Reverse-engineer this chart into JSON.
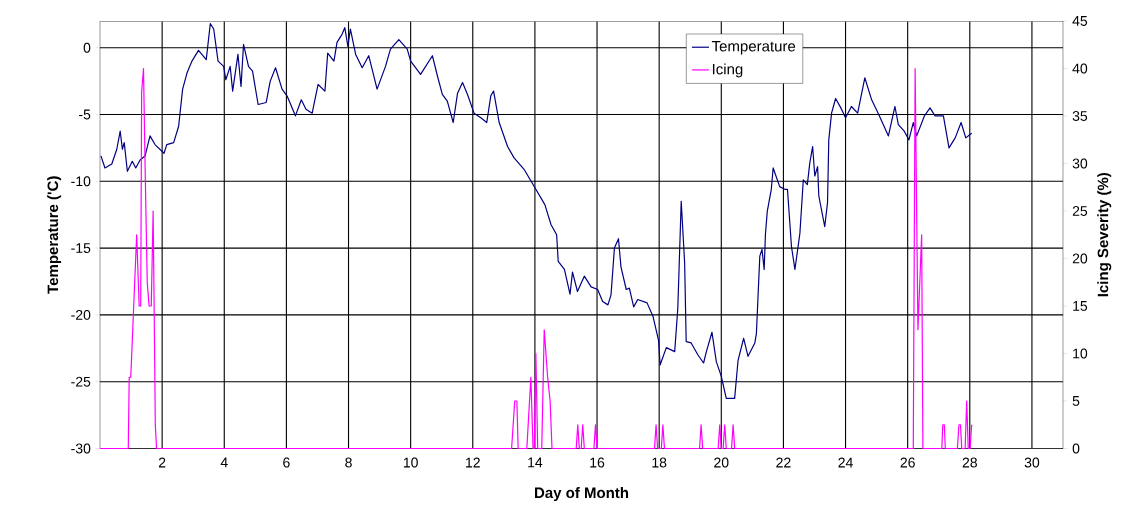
{
  "chart_data": {
    "type": "line",
    "xlabel": "Day of Month",
    "ylabel": "Temperature ('C)",
    "y2label": "Icing Severity (%)",
    "xlim": [
      0,
      31
    ],
    "xticks": [
      2,
      4,
      6,
      8,
      10,
      12,
      14,
      16,
      18,
      20,
      22,
      24,
      26,
      28,
      30
    ],
    "ylim": [
      -30,
      2
    ],
    "yticks": [
      -30,
      -25,
      -20,
      -15,
      -10,
      -5,
      0
    ],
    "y2lim": [
      0,
      45
    ],
    "y2ticks": [
      0,
      5,
      10,
      15,
      20,
      25,
      30,
      35,
      40,
      45
    ],
    "grid": true,
    "legend": "top right",
    "marker": "none",
    "line_style": "solid",
    "series": [
      {
        "name": "Temperature",
        "color": "#000080",
        "x": [
          0.03,
          0.16,
          0.38,
          0.54,
          0.65,
          0.72,
          0.78,
          0.88,
          1.04,
          1.15,
          1.29,
          1.45,
          1.61,
          1.77,
          2.06,
          2.15,
          2.37,
          2.53,
          2.66,
          2.8,
          2.96,
          3.17,
          3.42,
          3.55,
          3.66,
          3.8,
          3.98,
          4.05,
          4.19,
          4.27,
          4.44,
          4.54,
          4.62,
          4.78,
          4.91,
          5.09,
          5.35,
          5.48,
          5.65,
          5.86,
          6.02,
          6.29,
          6.48,
          6.63,
          6.83,
          7.02,
          7.24,
          7.33,
          7.53,
          7.63,
          7.79,
          7.88,
          7.98,
          8.06,
          8.23,
          8.44,
          8.65,
          8.92,
          9.19,
          9.35,
          9.62,
          9.89,
          10.0,
          10.32,
          10.7,
          10.86,
          11.02,
          11.18,
          11.37,
          11.51,
          11.67,
          11.83,
          12.04,
          12.26,
          12.45,
          12.58,
          12.67,
          12.85,
          13.12,
          13.33,
          13.65,
          14.03,
          14.32,
          14.52,
          14.7,
          14.75,
          14.95,
          15.13,
          15.21,
          15.37,
          15.59,
          15.81,
          16.02,
          16.18,
          16.35,
          16.45,
          16.56,
          16.69,
          16.77,
          16.94,
          17.04,
          17.18,
          17.31,
          17.61,
          17.8,
          17.98,
          18.03,
          18.23,
          18.5,
          18.6,
          18.71,
          18.82,
          18.87,
          19.03,
          19.25,
          19.43,
          19.52,
          19.7,
          19.84,
          20.0,
          20.16,
          20.43,
          20.54,
          20.72,
          20.86,
          21.08,
          21.13,
          21.24,
          21.31,
          21.38,
          21.42,
          21.48,
          21.61,
          21.67,
          21.88,
          22.04,
          22.13,
          22.26,
          22.37,
          22.53,
          22.64,
          22.77,
          22.85,
          22.94,
          23.01,
          23.1,
          23.14,
          23.33,
          23.42,
          23.46,
          23.55,
          23.68,
          23.87,
          24.0,
          24.19,
          24.39,
          24.62,
          24.84,
          25.05,
          25.38,
          25.59,
          25.7,
          25.89,
          26.04,
          26.18,
          26.29,
          26.54,
          26.72,
          26.88,
          27.15,
          27.33,
          27.53,
          27.72,
          27.87,
          28.06
        ],
        "values": [
          -8.1,
          -9.0,
          -8.7,
          -7.6,
          -6.25,
          -7.6,
          -7.1,
          -9.25,
          -8.5,
          -9.0,
          -8.4,
          -8.1,
          -6.6,
          -7.25,
          -7.9,
          -7.25,
          -7.1,
          -5.9,
          -3.1,
          -1.9,
          -1.0,
          -0.2,
          -0.9,
          1.8,
          1.4,
          -1.0,
          -1.4,
          -2.4,
          -1.4,
          -3.25,
          -0.5,
          -2.9,
          0.25,
          -1.4,
          -1.75,
          -4.25,
          -4.1,
          -2.5,
          -1.5,
          -3.1,
          -3.6,
          -5.1,
          -3.9,
          -4.6,
          -4.9,
          -2.75,
          -3.25,
          -0.4,
          -1.0,
          0.4,
          1.0,
          1.5,
          0.1,
          1.4,
          -0.5,
          -1.5,
          -0.6,
          -3.1,
          -1.4,
          -0.1,
          0.6,
          -0.1,
          -1.0,
          -2.0,
          -0.6,
          -2.1,
          -3.5,
          -4.0,
          -5.6,
          -3.4,
          -2.6,
          -3.5,
          -4.9,
          -5.25,
          -5.6,
          -3.6,
          -3.25,
          -5.6,
          -7.4,
          -8.25,
          -9.1,
          -10.6,
          -11.75,
          -13.25,
          -14.0,
          -16.0,
          -16.6,
          -18.45,
          -16.8,
          -18.25,
          -17.1,
          -17.9,
          -18.1,
          -19.0,
          -19.25,
          -18.5,
          -15.0,
          -14.3,
          -16.4,
          -18.1,
          -18.0,
          -19.4,
          -18.85,
          -19.1,
          -20.1,
          -21.9,
          -23.75,
          -22.45,
          -22.75,
          -19.5,
          -11.5,
          -16.1,
          -22.0,
          -22.1,
          -23.0,
          -23.6,
          -22.75,
          -21.3,
          -23.5,
          -24.6,
          -26.25,
          -26.25,
          -23.4,
          -21.75,
          -23.1,
          -22.1,
          -21.4,
          -15.6,
          -15.1,
          -16.6,
          -14.0,
          -12.25,
          -10.6,
          -9.0,
          -10.4,
          -10.6,
          -10.6,
          -14.9,
          -16.6,
          -13.9,
          -9.9,
          -10.25,
          -8.6,
          -7.4,
          -9.6,
          -8.9,
          -11.1,
          -13.4,
          -11.6,
          -6.9,
          -4.9,
          -3.8,
          -4.6,
          -5.25,
          -4.4,
          -4.9,
          -2.25,
          -3.9,
          -4.9,
          -6.6,
          -4.4,
          -5.75,
          -6.25,
          -6.9,
          -5.6,
          -6.6,
          -5.1,
          -4.5,
          -5.1,
          -5.1,
          -7.5,
          -6.75,
          -5.6,
          -6.75,
          -6.4
        ]
      },
      {
        "name": "Icing",
        "color": "#ff00ff",
        "axis": "y2",
        "x": [
          0,
          0.91,
          0.94,
          0.99,
          1.18,
          1.26,
          1.31,
          1.34,
          1.4,
          1.45,
          1.52,
          1.58,
          1.65,
          1.71,
          1.75,
          1.78,
          1.82,
          13.25,
          13.35,
          13.42,
          13.46,
          13.74,
          13.87,
          13.94,
          13.98,
          14.03,
          14.09,
          14.22,
          14.3,
          14.41,
          14.49,
          14.55,
          15.33,
          15.38,
          15.43,
          15.49,
          15.54,
          15.59,
          15.9,
          15.95,
          16.0,
          17.85,
          17.9,
          17.95,
          18.07,
          18.12,
          18.17,
          19.3,
          19.35,
          19.4,
          19.9,
          19.95,
          20.0,
          20.06,
          20.11,
          20.16,
          20.33,
          20.38,
          20.43,
          26.18,
          26.24,
          26.33,
          26.45,
          26.49,
          27.1,
          27.13,
          27.18,
          27.21,
          27.6,
          27.65,
          27.7,
          27.74,
          27.85,
          27.9,
          27.95,
          28.01,
          28.06
        ],
        "values": [
          0,
          0,
          7.5,
          7.5,
          22.5,
          15,
          15,
          37.5,
          40,
          30,
          17.5,
          15,
          15,
          25,
          12.5,
          2.5,
          0,
          0,
          5,
          5,
          0,
          0,
          7.5,
          0,
          0,
          10,
          0,
          0,
          12.5,
          7.5,
          5,
          0,
          0,
          2.5,
          0,
          0,
          2.5,
          0,
          0,
          2.5,
          0,
          0,
          2.5,
          0,
          0,
          2.5,
          0,
          0,
          2.5,
          0,
          0,
          2.5,
          0,
          0,
          2.5,
          0,
          0,
          2.5,
          0,
          0,
          40,
          12.5,
          22.5,
          0,
          0,
          2.5,
          2.5,
          0,
          0,
          2.5,
          2.5,
          0,
          0,
          5,
          0,
          0,
          2.5
        ]
      }
    ]
  }
}
